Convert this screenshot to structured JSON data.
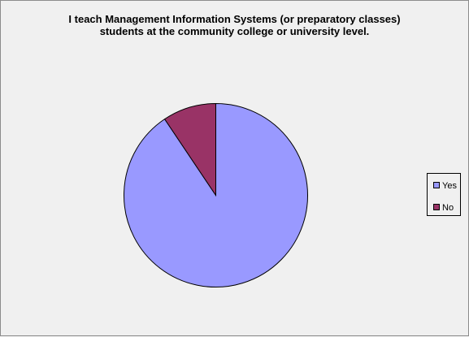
{
  "chart_data": {
    "type": "pie",
    "title_lines": [
      "I teach Management Information Systems (or preparatory classes)",
      "students at the community college or university level."
    ],
    "categories": [
      "Yes",
      "No"
    ],
    "values": [
      90.6,
      9.4
    ],
    "colors": [
      "#9999ff",
      "#993366"
    ],
    "legend_position": "right"
  }
}
